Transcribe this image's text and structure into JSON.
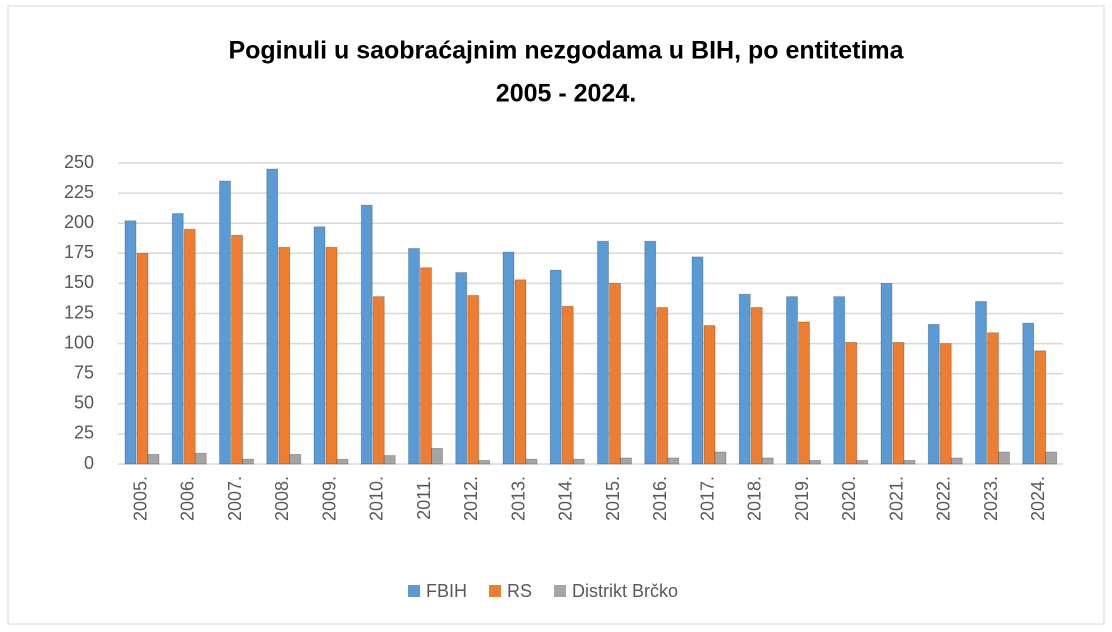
{
  "chart_data": {
    "type": "bar",
    "title": [
      "Poginuli u saobraćajnim  nezgodama u BIH, po entitetima",
      "2005 - 2024."
    ],
    "categories": [
      "2005.",
      "2006.",
      "2007.",
      "2008.",
      "2009.",
      "2010.",
      "2011.",
      "2012.",
      "2013.",
      "2014.",
      "2015.",
      "2016.",
      "2017.",
      "2018.",
      "2019.",
      "2020.",
      "2021.",
      "2022.",
      "2023.",
      "2024."
    ],
    "series": [
      {
        "name": "FBIH",
        "color": "#5b9bd5",
        "values": [
          202,
          208,
          235,
          245,
          197,
          215,
          179,
          159,
          176,
          161,
          185,
          185,
          172,
          141,
          139,
          139,
          150,
          116,
          135,
          117
        ]
      },
      {
        "name": "RS",
        "color": "#ed7d31",
        "values": [
          175,
          195,
          190,
          180,
          180,
          139,
          163,
          140,
          153,
          131,
          150,
          130,
          115,
          130,
          118,
          101,
          101,
          100,
          109,
          94
        ]
      },
      {
        "name": "Distrikt Brčko",
        "color": "#a5a5a5",
        "values": [
          8,
          9,
          4,
          8,
          4,
          7,
          13,
          3,
          4,
          4,
          5,
          5,
          10,
          5,
          3,
          3,
          3,
          5,
          10,
          10
        ]
      }
    ],
    "ylim": [
      0,
      250
    ],
    "yticks": [
      0,
      25,
      50,
      75,
      100,
      125,
      150,
      175,
      200,
      225,
      250
    ],
    "grid": true,
    "legend": "bottom"
  }
}
